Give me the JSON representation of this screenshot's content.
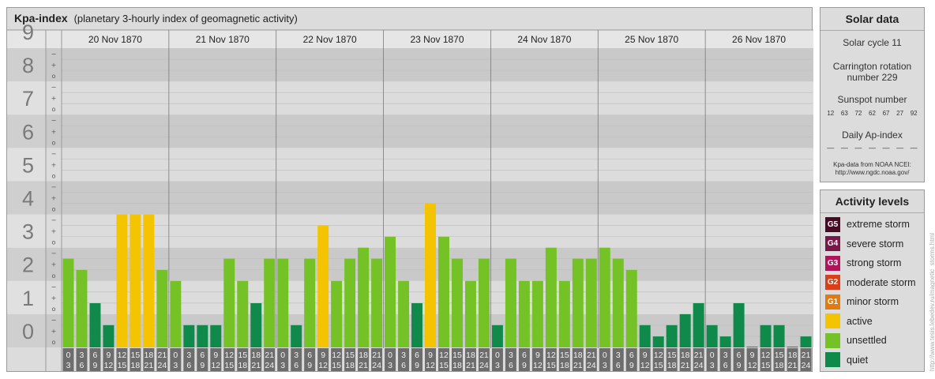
{
  "chart": {
    "title": "Kpa-index",
    "subtitle": "(planetary 3-hourly index of geomagnetic activity)"
  },
  "chart_data": {
    "type": "bar",
    "title": "Kpa-index",
    "subtitle": "(planetary 3-hourly index of geomagnetic activity)",
    "ylim": [
      0,
      9
    ],
    "y_ticks": [
      "0",
      "1",
      "2",
      "3",
      "4",
      "5",
      "6",
      "7",
      "8",
      "9"
    ],
    "subticks": [
      "o",
      "+",
      "−"
    ],
    "days": [
      "20 Nov 1870",
      "21 Nov 1870",
      "22 Nov 1870",
      "23 Nov 1870",
      "24 Nov 1870",
      "25 Nov 1870",
      "26 Nov 1870"
    ],
    "hour_labels": [
      [
        "0",
        "3"
      ],
      [
        "3",
        "6"
      ],
      [
        "6",
        "9"
      ],
      [
        "9",
        "12"
      ],
      [
        "12",
        "15"
      ],
      [
        "15",
        "18"
      ],
      [
        "18",
        "21"
      ],
      [
        "21",
        "24"
      ]
    ],
    "values": [
      [
        2.67,
        2.33,
        1.33,
        0.67,
        4.0,
        4.0,
        4.0,
        2.33
      ],
      [
        2.0,
        0.67,
        0.67,
        0.67,
        2.67,
        2.0,
        1.33,
        2.67
      ],
      [
        2.67,
        0.67,
        2.67,
        3.67,
        2.0,
        2.67,
        3.0,
        2.67
      ],
      [
        3.33,
        2.0,
        1.33,
        4.33,
        3.33,
        2.67,
        2.0,
        2.67
      ],
      [
        0.67,
        2.67,
        2.0,
        2.0,
        3.0,
        2.0,
        2.67,
        2.67
      ],
      [
        3.0,
        2.67,
        2.33,
        0.67,
        0.33,
        0.67,
        1.0,
        1.33
      ],
      [
        0.67,
        0.33,
        1.33,
        0.0,
        0.67,
        0.67,
        0.0,
        0.33
      ]
    ],
    "level_colors": {
      "quiet": "#0f8a4a",
      "unsettled": "#74c226",
      "active": "#f5c400"
    }
  },
  "solar": {
    "header": "Solar data",
    "cycle": "Solar cycle 11",
    "carrington_line1": "Carrington rotation",
    "carrington_line2": "number 229",
    "sunspot_label": "Sunspot number",
    "sunspot_values": [
      "12",
      "63",
      "72",
      "62",
      "67",
      "27",
      "92"
    ],
    "ap_label": "Daily Ap-index",
    "ap_values": [
      "—",
      "—",
      "—",
      "—",
      "—",
      "—",
      "—"
    ],
    "credit_line1": "Kpa-data from NOAA NCEI:",
    "credit_line2": "http://www.ngdc.noaa.gov/"
  },
  "activity": {
    "header": "Activity levels",
    "levels": [
      {
        "badge": "G5",
        "label": "extreme storm",
        "color": "#4a0a26"
      },
      {
        "badge": "G4",
        "label": "severe storm",
        "color": "#7b1648"
      },
      {
        "badge": "G3",
        "label": "strong storm",
        "color": "#b0145a"
      },
      {
        "badge": "G2",
        "label": "moderate storm",
        "color": "#d8401c"
      },
      {
        "badge": "G1",
        "label": "minor storm",
        "color": "#e27a0d"
      },
      {
        "badge": "",
        "label": "active",
        "color": "#f5c400"
      },
      {
        "badge": "",
        "label": "unsettled",
        "color": "#74c226"
      },
      {
        "badge": "",
        "label": "quiet",
        "color": "#0f8a4a"
      }
    ]
  },
  "watermark": "http://www.tesis.lebedev.ru/magnetic_storms.html"
}
